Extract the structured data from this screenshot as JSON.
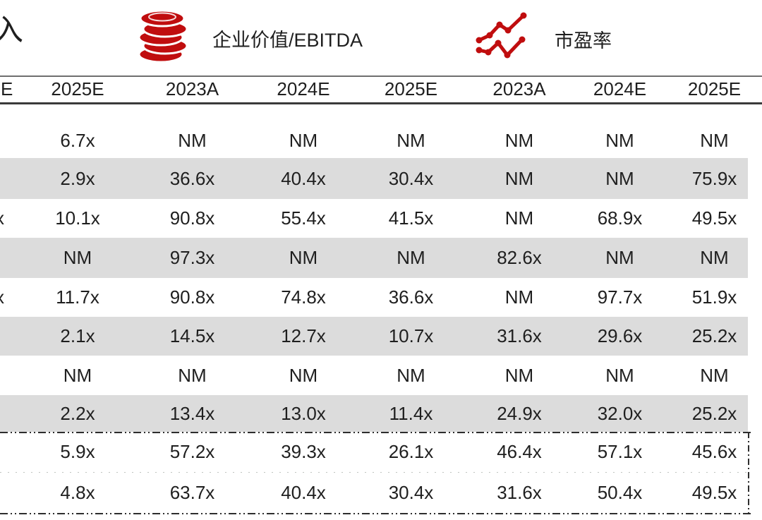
{
  "legend": {
    "partial_left_text": "入",
    "items": [
      {
        "icon": "coins-icon",
        "label": "企业价值/EBITDA"
      },
      {
        "icon": "line-chart-icon",
        "label": "市盈率"
      }
    ]
  },
  "table": {
    "header": [
      "E",
      "2025E",
      "2023A",
      "2024E",
      "2025E",
      "2023A",
      "2024E",
      "2025E"
    ],
    "rows": [
      {
        "shaded": false,
        "boxed": false,
        "cells": [
          "",
          "6.7x",
          "NM",
          "NM",
          "NM",
          "NM",
          "NM",
          "NM"
        ]
      },
      {
        "shaded": true,
        "boxed": false,
        "cells": [
          "",
          "2.9x",
          "36.6x",
          "40.4x",
          "30.4x",
          "NM",
          "NM",
          "75.9x"
        ]
      },
      {
        "shaded": false,
        "boxed": false,
        "cells": [
          "x",
          "10.1x",
          "90.8x",
          "55.4x",
          "41.5x",
          "NM",
          "68.9x",
          "49.5x"
        ]
      },
      {
        "shaded": true,
        "boxed": false,
        "cells": [
          "",
          "NM",
          "97.3x",
          "NM",
          "NM",
          "82.6x",
          "NM",
          "NM"
        ]
      },
      {
        "shaded": false,
        "boxed": false,
        "cells": [
          "x",
          "11.7x",
          "90.8x",
          "74.8x",
          "36.6x",
          "NM",
          "97.7x",
          "51.9x"
        ]
      },
      {
        "shaded": true,
        "boxed": false,
        "cells": [
          "",
          "2.1x",
          "14.5x",
          "12.7x",
          "10.7x",
          "31.6x",
          "29.6x",
          "25.2x"
        ]
      },
      {
        "shaded": false,
        "boxed": false,
        "cells": [
          "",
          "NM",
          "NM",
          "NM",
          "NM",
          "NM",
          "NM",
          "NM"
        ]
      },
      {
        "shaded": true,
        "boxed": false,
        "cells": [
          "",
          "2.2x",
          "13.4x",
          "13.0x",
          "11.4x",
          "24.9x",
          "32.0x",
          "25.2x"
        ]
      },
      {
        "shaded": false,
        "boxed": true,
        "cells": [
          "",
          "5.9x",
          "57.2x",
          "39.3x",
          "26.1x",
          "46.4x",
          "57.1x",
          "45.6x"
        ]
      },
      {
        "shaded": false,
        "boxed": true,
        "cells": [
          "",
          "4.8x",
          "63.7x",
          "40.4x",
          "30.4x",
          "31.6x",
          "50.4x",
          "49.5x"
        ]
      }
    ]
  },
  "colors": {
    "accent_red": "#c00d0e",
    "band_gray": "#dcdcdc",
    "text": "#1f1f1f"
  }
}
